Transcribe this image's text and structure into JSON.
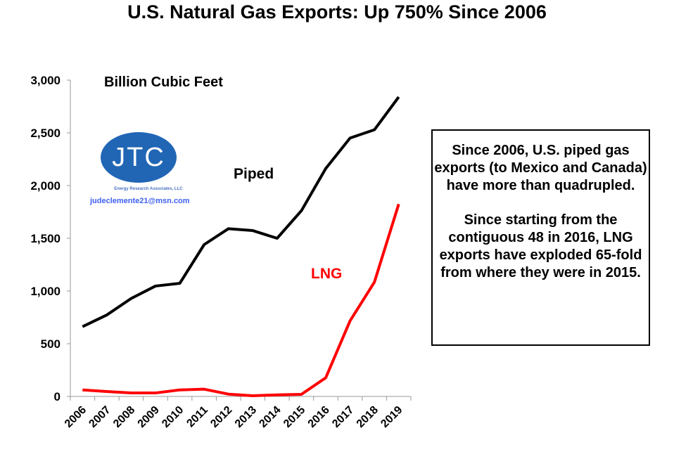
{
  "title": "U.S. Natural Gas Exports: Up 750% Since 2006",
  "logo": {
    "text": "JTC",
    "subtitle": "Energy Research Associates, LLC",
    "email": "judeclemente21@msn.com",
    "color": "#2166b5"
  },
  "note": {
    "paragraphs": [
      "Since 2006, U.S. piped gas exports (to Mexico and Canada) have more than quadrupled.",
      "Since starting from the contiguous 48 in 2016, LNG exports have exploded 65-fold from where they were in 2015."
    ]
  },
  "chart_data": {
    "type": "line",
    "title": "U.S. Natural Gas Exports: Up 750% Since 2006",
    "ylabel": "Billion Cubic Feet",
    "xlabel": "",
    "categories": [
      "2006",
      "2007",
      "2008",
      "2009",
      "2010",
      "2011",
      "2012",
      "2013",
      "2014",
      "2015",
      "2016",
      "2017",
      "2018",
      "2019"
    ],
    "ylim": [
      0,
      3000
    ],
    "yticks": [
      0,
      500,
      1000,
      1500,
      2000,
      2500,
      3000
    ],
    "ytick_labels": [
      "0",
      "500",
      "1,000",
      "1,500",
      "2,000",
      "2,500",
      "3,000"
    ],
    "grid": false,
    "legend": "inline labels",
    "series": [
      {
        "name": "Piped",
        "color": "#000000",
        "values": [
          662,
          773,
          929,
          1047,
          1073,
          1440,
          1591,
          1573,
          1500,
          1762,
          2162,
          2451,
          2529,
          2840
        ]
      },
      {
        "name": "LNG",
        "color": "#ff0000",
        "values": [
          62,
          47,
          33,
          33,
          62,
          69,
          22,
          7,
          15,
          20,
          177,
          717,
          1084,
          1824
        ]
      }
    ]
  }
}
